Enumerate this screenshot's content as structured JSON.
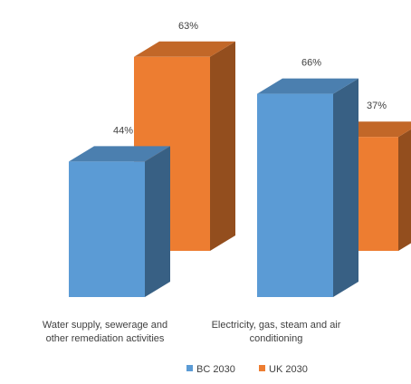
{
  "chart_data": {
    "type": "bar",
    "categories": [
      "Water supply, sewerage and other remediation activities",
      "Electricity, gas, steam and air conditioning"
    ],
    "category_lines": [
      [
        "Water supply, sewerage and",
        "other remediation activities"
      ],
      [
        "Electricity, gas, steam and air",
        "conditioning"
      ]
    ],
    "series": [
      {
        "name": "BC 2030",
        "values": [
          44,
          66
        ],
        "labels": [
          "44%",
          "66%"
        ],
        "color": "#5b9bd5"
      },
      {
        "name": "UK 2030",
        "values": [
          63,
          37
        ],
        "labels": [
          "63%",
          "37%"
        ],
        "color": "#ed7d31"
      }
    ],
    "unit": "%",
    "ylim": [
      0,
      100
    ],
    "grid": false,
    "legend_position": "bottom",
    "style": "3d-column"
  }
}
